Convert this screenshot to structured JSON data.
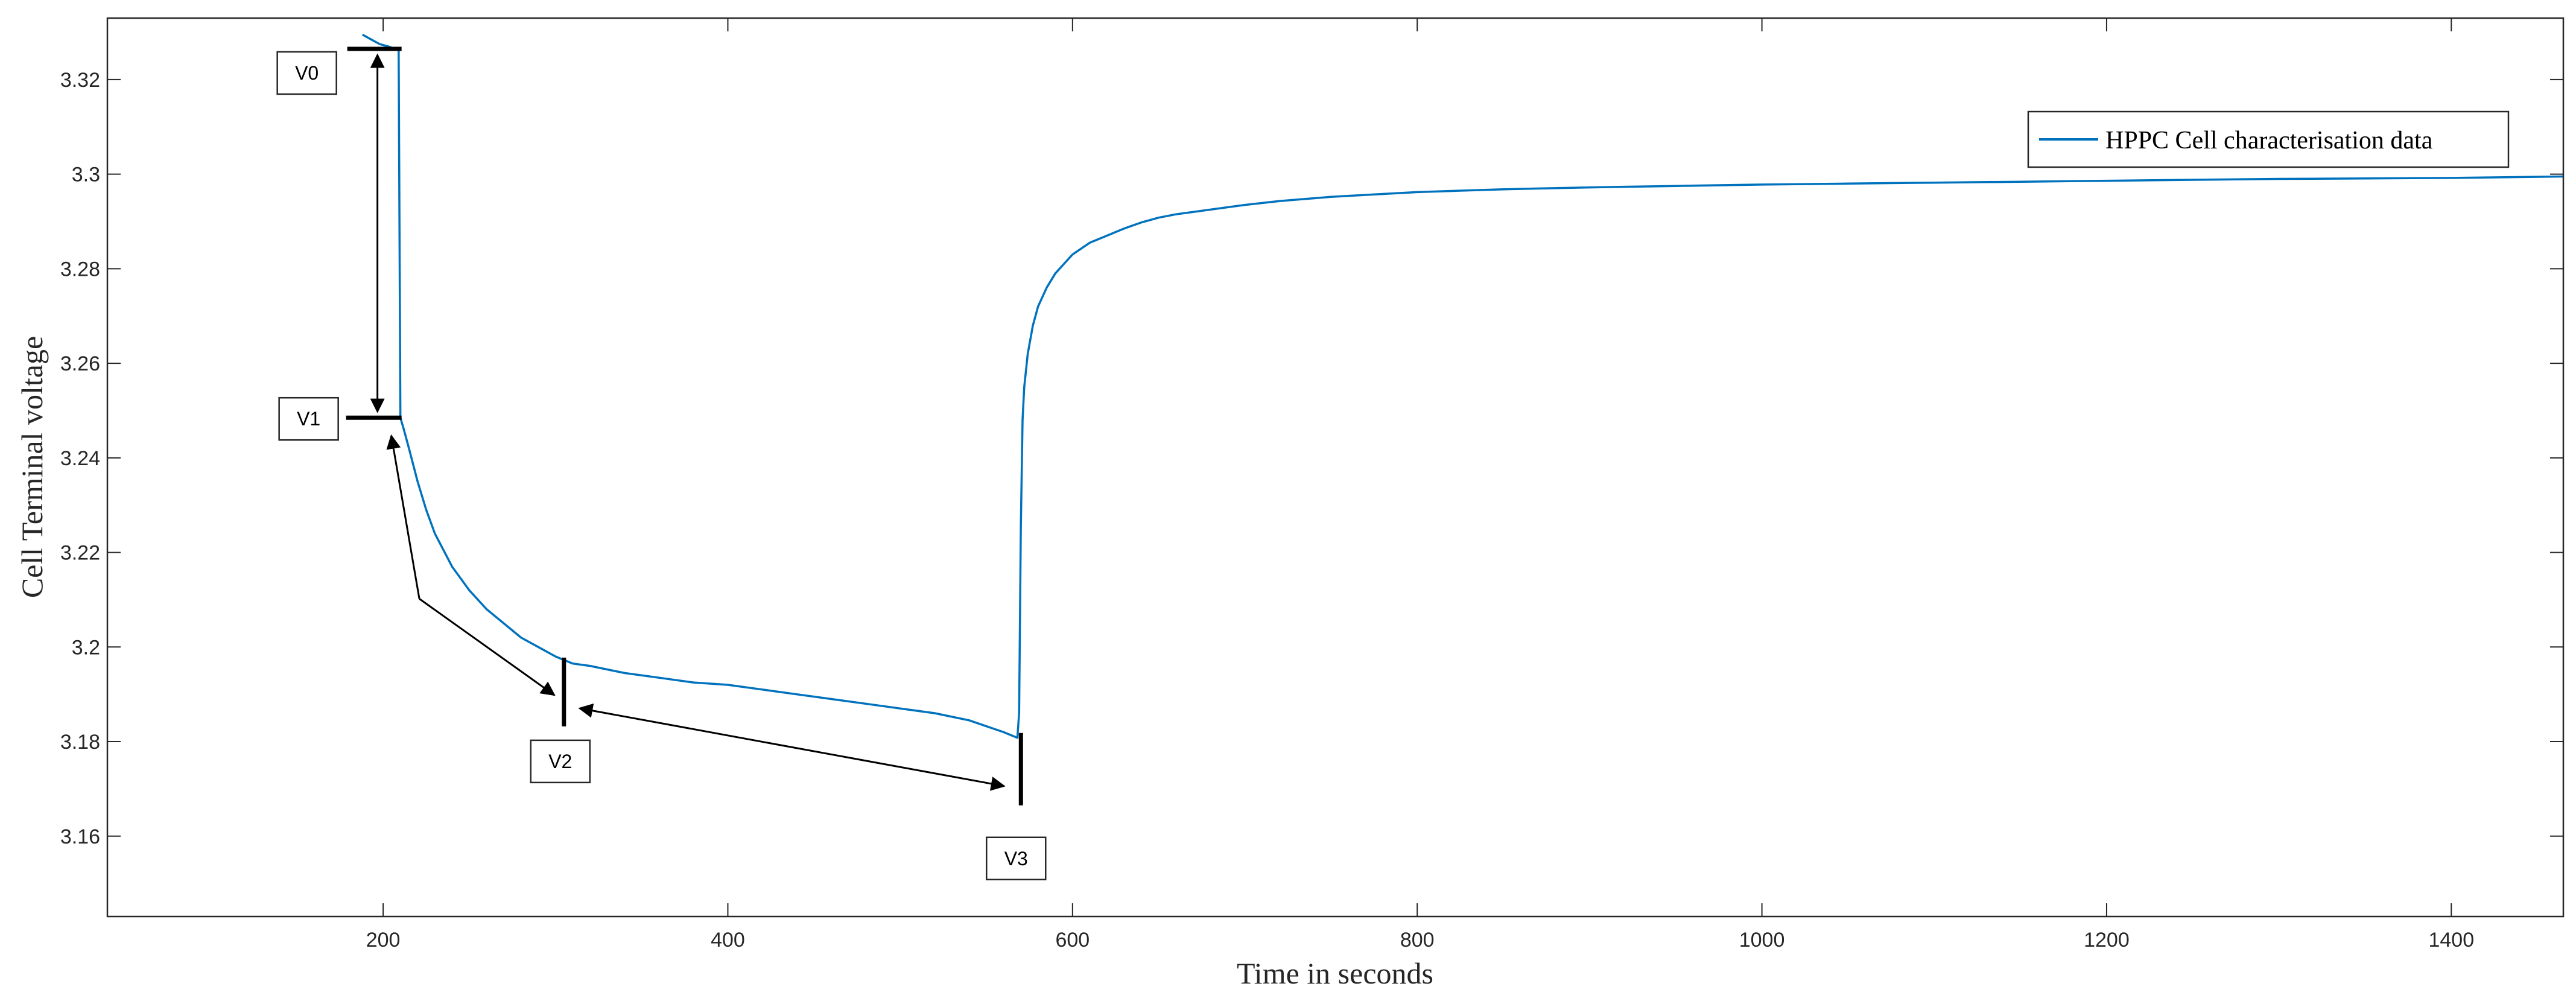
{
  "chart_data": {
    "type": "line",
    "title": "",
    "xlabel": "Time in seconds",
    "ylabel": "Cell Terminal voltage",
    "xlim": [
      40,
      1465
    ],
    "ylim": [
      3.143,
      3.333
    ],
    "xticks": [
      200,
      400,
      600,
      800,
      1000,
      1200,
      1400
    ],
    "xtick_labels": [
      "200",
      "400",
      "600",
      "800",
      "1000",
      "1200",
      "1400"
    ],
    "yticks": [
      3.16,
      3.18,
      3.2,
      3.22,
      3.24,
      3.26,
      3.28,
      3.3,
      3.32
    ],
    "ytick_labels": [
      "3.16",
      "3.18",
      "3.2",
      "3.22",
      "3.24",
      "3.26",
      "3.28",
      "3.3",
      "3.32"
    ],
    "grid": false,
    "legend_position": "top-right",
    "series": [
      {
        "name": "HPPC Cell characterisation data",
        "color": "#0072BD",
        "x": [
          188,
          193,
          198,
          203,
          207,
          209,
          210,
          212,
          215,
          220,
          225,
          230,
          240,
          250,
          260,
          270,
          280,
          290,
          300,
          310,
          320,
          340,
          360,
          380,
          400,
          420,
          440,
          460,
          480,
          500,
          520,
          540,
          560,
          568,
          569,
          570,
          571,
          572,
          574,
          577,
          580,
          585,
          590,
          595,
          600,
          610,
          620,
          630,
          640,
          650,
          660,
          680,
          700,
          720,
          750,
          780,
          800,
          850,
          900,
          950,
          1000,
          1050,
          1100,
          1150,
          1200,
          1250,
          1300,
          1350,
          1400,
          1465
        ],
        "y": [
          3.3295,
          3.3285,
          3.3275,
          3.327,
          3.3265,
          3.3265,
          3.2485,
          3.246,
          3.242,
          3.235,
          3.229,
          3.224,
          3.217,
          3.212,
          3.208,
          3.205,
          3.202,
          3.2,
          3.198,
          3.1965,
          3.196,
          3.1945,
          3.1935,
          3.1925,
          3.192,
          3.191,
          3.19,
          3.189,
          3.188,
          3.187,
          3.186,
          3.1845,
          3.182,
          3.1808,
          3.186,
          3.225,
          3.248,
          3.255,
          3.262,
          3.268,
          3.272,
          3.276,
          3.279,
          3.281,
          3.283,
          3.2855,
          3.287,
          3.2885,
          3.2898,
          3.2908,
          3.2915,
          3.2925,
          3.2935,
          3.2943,
          3.2952,
          3.2958,
          3.2962,
          3.2968,
          3.2972,
          3.2975,
          3.2978,
          3.298,
          3.2982,
          3.2984,
          3.2986,
          3.2988,
          3.299,
          3.2991,
          3.2992,
          3.2995
        ]
      }
    ],
    "annotations": [
      {
        "label": "V0",
        "x": 210,
        "y": 3.3265
      },
      {
        "label": "V1",
        "x": 210,
        "y": 3.2485
      },
      {
        "label": "V2",
        "x": 300,
        "y": 3.1975
      },
      {
        "label": "V3",
        "x": 569,
        "y": 3.1808
      }
    ]
  }
}
